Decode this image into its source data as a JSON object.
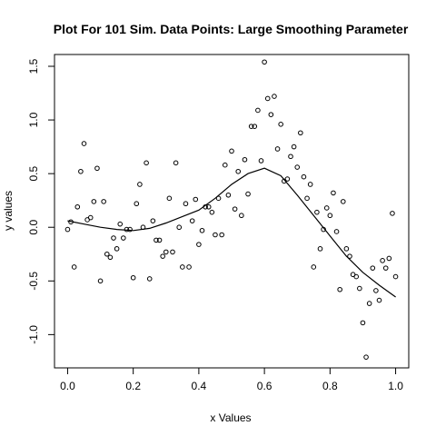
{
  "chart_data": {
    "type": "scatter",
    "title": "Plot For 101 Sim. Data Points: Large Smoothing Parameter",
    "xlabel": "x Values",
    "ylabel": "y values",
    "xlim": [
      -0.04,
      1.04
    ],
    "ylim": [
      -1.31,
      1.61
    ],
    "x_ticks": [
      0,
      0.2,
      0.4,
      0.6,
      0.8,
      1
    ],
    "x_tick_labels": [
      "0.0",
      "0.2",
      "0.4",
      "0.6",
      "0.8",
      "1.0"
    ],
    "y_ticks": [
      -1,
      -0.5,
      0,
      0.5,
      1,
      1.5
    ],
    "y_tick_labels": [
      "-1.0",
      "-0.5",
      "0.0",
      "0.5",
      "1.0",
      "1.5"
    ],
    "grid": false,
    "legend": "none",
    "point_color": "#000000",
    "line_color": "#000000",
    "series": [
      {
        "kind": "points",
        "x": [
          0.0,
          0.01,
          0.02,
          0.03,
          0.04,
          0.05,
          0.06,
          0.07,
          0.08,
          0.09,
          0.1,
          0.11,
          0.12,
          0.13,
          0.14,
          0.15,
          0.16,
          0.17,
          0.18,
          0.19,
          0.2,
          0.21,
          0.22,
          0.23,
          0.24,
          0.25,
          0.26,
          0.27,
          0.28,
          0.29,
          0.3,
          0.31,
          0.32,
          0.33,
          0.34,
          0.35,
          0.36,
          0.37,
          0.38,
          0.39,
          0.4,
          0.41,
          0.42,
          0.43,
          0.44,
          0.45,
          0.46,
          0.47,
          0.48,
          0.49,
          0.5,
          0.51,
          0.52,
          0.53,
          0.54,
          0.55,
          0.56,
          0.57,
          0.58,
          0.59,
          0.6,
          0.61,
          0.62,
          0.63,
          0.64,
          0.65,
          0.66,
          0.67,
          0.68,
          0.69,
          0.7,
          0.71,
          0.72,
          0.73,
          0.74,
          0.75,
          0.76,
          0.77,
          0.78,
          0.79,
          0.8,
          0.81,
          0.82,
          0.83,
          0.84,
          0.85,
          0.86,
          0.87,
          0.88,
          0.89,
          0.9,
          0.91,
          0.92,
          0.93,
          0.94,
          0.95,
          0.96,
          0.97,
          0.98,
          0.99,
          1.0
        ],
        "y": [
          -0.02,
          0.05,
          -0.37,
          0.19,
          0.52,
          0.78,
          0.07,
          0.09,
          0.24,
          0.55,
          -0.5,
          0.24,
          -0.25,
          -0.28,
          -0.1,
          -0.2,
          0.03,
          -0.1,
          -0.02,
          -0.02,
          -0.47,
          0.22,
          0.4,
          0.0,
          0.6,
          -0.48,
          0.06,
          -0.12,
          -0.12,
          -0.27,
          -0.23,
          0.27,
          -0.23,
          0.6,
          0.0,
          -0.37,
          0.22,
          -0.37,
          0.06,
          0.26,
          -0.16,
          -0.03,
          0.19,
          0.19,
          0.14,
          -0.07,
          0.27,
          -0.07,
          0.58,
          0.3,
          0.71,
          0.17,
          0.52,
          0.11,
          0.63,
          0.31,
          0.94,
          0.94,
          1.09,
          0.62,
          1.54,
          1.2,
          1.05,
          1.22,
          0.73,
          0.96,
          0.43,
          0.45,
          0.66,
          0.75,
          0.56,
          0.88,
          0.47,
          0.27,
          0.4,
          -0.37,
          0.14,
          -0.2,
          -0.02,
          0.18,
          0.11,
          0.32,
          -0.04,
          -0.58,
          0.24,
          -0.2,
          -0.27,
          -0.44,
          -0.46,
          -0.57,
          -0.89,
          -1.21,
          -0.71,
          -0.38,
          -0.59,
          -0.68,
          -0.31,
          -0.38,
          -0.29,
          0.13,
          -0.46
        ]
      },
      {
        "kind": "line",
        "x": [
          0.0,
          0.05,
          0.1,
          0.15,
          0.2,
          0.25,
          0.3,
          0.35,
          0.4,
          0.45,
          0.5,
          0.55,
          0.6,
          0.65,
          0.7,
          0.75,
          0.8,
          0.85,
          0.9,
          0.95,
          1.0
        ],
        "y": [
          0.06,
          0.03,
          0.0,
          -0.02,
          -0.03,
          -0.01,
          0.04,
          0.1,
          0.16,
          0.27,
          0.4,
          0.5,
          0.55,
          0.48,
          0.3,
          0.11,
          -0.08,
          -0.27,
          -0.42,
          -0.54,
          -0.65
        ]
      }
    ]
  }
}
